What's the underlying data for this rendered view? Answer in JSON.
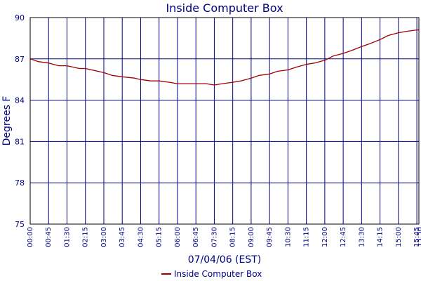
{
  "chart_data": {
    "type": "line",
    "title": "Inside Computer Box",
    "xlabel": "07/04/06 (EST)",
    "ylabel": "Degrees F",
    "ylim": [
      75,
      90
    ],
    "yticks": [
      "75",
      "78",
      "81",
      "84",
      "87",
      "90"
    ],
    "xticks": [
      "00:00",
      "00:45",
      "01:30",
      "02:15",
      "03:00",
      "03:45",
      "04:30",
      "05:15",
      "06:00",
      "06:45",
      "07:30",
      "08:15",
      "09:00",
      "09:45",
      "10:30",
      "11:15",
      "12:00",
      "12:45",
      "13:30",
      "14:15",
      "15:00",
      "15:45",
      "15:50"
    ],
    "grid": true,
    "legend": {
      "position": "bottom-center"
    },
    "series": [
      {
        "name": "Inside Computer Box",
        "color": "#a00000",
        "x": [
          "00:00",
          "00:20",
          "00:45",
          "01:10",
          "01:30",
          "02:00",
          "02:15",
          "02:45",
          "03:00",
          "03:20",
          "03:45",
          "04:15",
          "04:30",
          "04:55",
          "05:15",
          "05:40",
          "06:00",
          "06:20",
          "06:45",
          "07:10",
          "07:30",
          "07:50",
          "08:15",
          "08:35",
          "09:00",
          "09:20",
          "09:45",
          "10:05",
          "10:30",
          "10:50",
          "11:15",
          "11:35",
          "12:00",
          "12:20",
          "12:45",
          "13:05",
          "13:30",
          "13:50",
          "14:15",
          "14:35",
          "15:00",
          "15:20",
          "15:45",
          "15:50"
        ],
        "values": [
          87.0,
          86.8,
          86.7,
          86.5,
          86.5,
          86.3,
          86.3,
          86.1,
          86.0,
          85.8,
          85.7,
          85.6,
          85.5,
          85.4,
          85.4,
          85.3,
          85.2,
          85.2,
          85.2,
          85.2,
          85.1,
          85.2,
          85.3,
          85.4,
          85.6,
          85.8,
          85.9,
          86.1,
          86.2,
          86.4,
          86.6,
          86.7,
          86.9,
          87.2,
          87.4,
          87.6,
          87.9,
          88.1,
          88.4,
          88.7,
          88.9,
          89.0,
          89.1,
          89.1
        ]
      }
    ]
  }
}
